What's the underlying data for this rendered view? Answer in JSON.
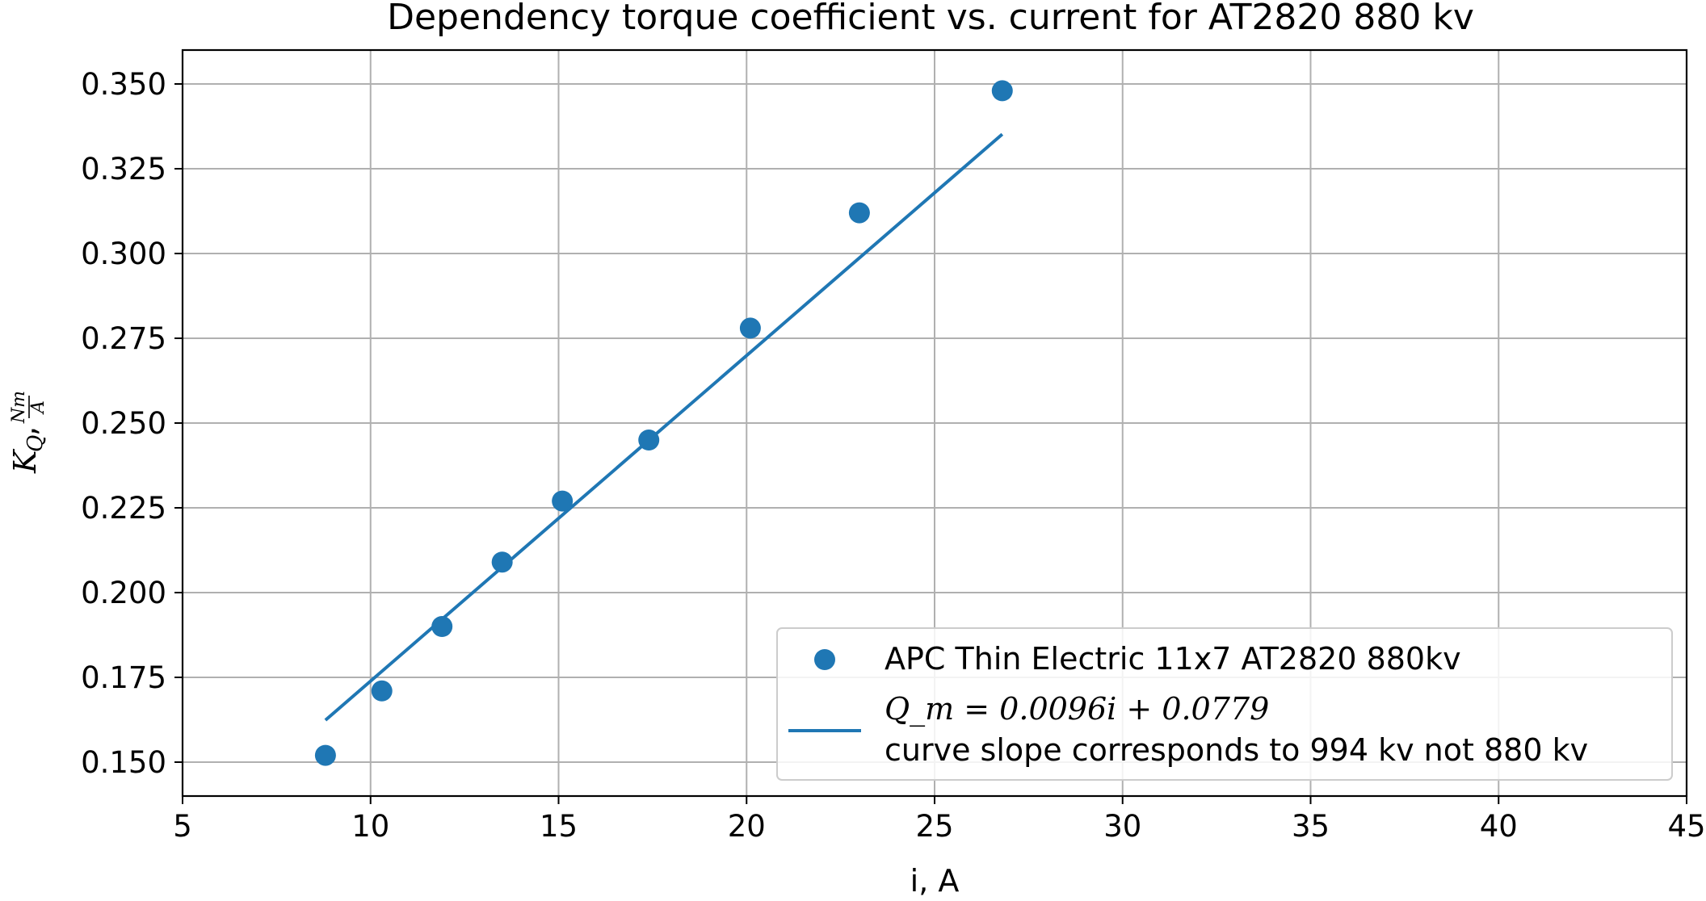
{
  "chart_data": {
    "type": "scatter",
    "title": "Dependency torque coefficient vs. current for AT2820 880 kv",
    "xlabel": "i, A",
    "ylabel": {
      "main": "K",
      "sub": "Q",
      "sep": ",",
      "frac_num": "Nm",
      "frac_den": "A"
    },
    "xlim": [
      5,
      45
    ],
    "ylim": [
      0.14,
      0.36
    ],
    "xticks": [
      5,
      10,
      15,
      20,
      25,
      30,
      35,
      40,
      45
    ],
    "yticks": [
      0.15,
      0.175,
      0.2,
      0.225,
      0.25,
      0.275,
      0.3,
      0.325,
      0.35
    ],
    "xtick_labels": [
      "5",
      "10",
      "15",
      "20",
      "25",
      "30",
      "35",
      "40",
      "45"
    ],
    "ytick_labels": [
      "0.150",
      "0.175",
      "0.200",
      "0.225",
      "0.250",
      "0.275",
      "0.300",
      "0.325",
      "0.350"
    ],
    "grid": true,
    "legend_position": "lower-right",
    "color": "#1f77b4",
    "series": [
      {
        "name": "APC Thin Electric 11x7 AT2820 880kv",
        "kind": "scatter",
        "x": [
          8.8,
          10.3,
          11.9,
          13.5,
          15.1,
          17.4,
          20.1,
          23.0,
          26.8
        ],
        "y": [
          0.152,
          0.171,
          0.19,
          0.209,
          0.227,
          0.245,
          0.278,
          0.312,
          0.348
        ]
      },
      {
        "name_line1": "Q_m = 0.0096i + 0.0779",
        "name_line2": "curve slope corresponds to 994 kv not 880 kv",
        "kind": "line",
        "slope": 0.0096,
        "intercept": 0.0779,
        "x_range": [
          8.8,
          26.8
        ]
      }
    ]
  }
}
